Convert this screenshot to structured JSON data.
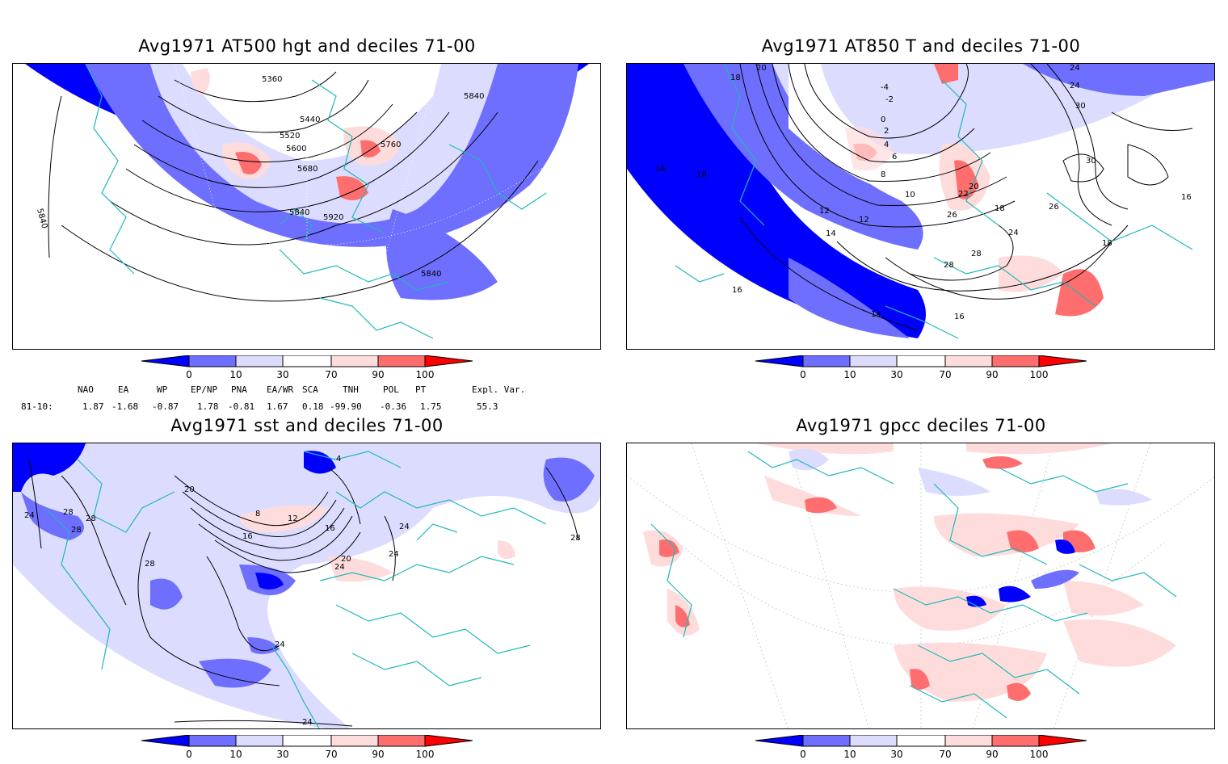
{
  "panels": [
    {
      "title": "Avg1971 AT500 hgt and deciles 71-00",
      "contour_labels": [
        "5360",
        "5440",
        "5520",
        "5600",
        "5680",
        "5760",
        "5840",
        "5840",
        "5840",
        "5840",
        "5920"
      ]
    },
    {
      "title": "Avg1971 AT850 T and deciles 71-00",
      "contour_labels": [
        "20",
        "18",
        "-4",
        "-2",
        "0",
        "2",
        "4",
        "6",
        "8",
        "10",
        "12",
        "12",
        "14",
        "14",
        "16",
        "16",
        "16",
        "16",
        "18",
        "18",
        "18",
        "20",
        "22",
        "24",
        "24",
        "24",
        "26",
        "26",
        "28",
        "28",
        "30",
        "30"
      ]
    },
    {
      "title": "Avg1971 sst and deciles 71-00",
      "contour_labels": [
        "24",
        "28",
        "28",
        "28",
        "28",
        "20",
        "16",
        "12",
        "8",
        "4",
        "16",
        "20",
        "24",
        "24",
        "24",
        "28",
        "24",
        "24"
      ]
    },
    {
      "title": "Avg1971 gpcc deciles 71-00",
      "contour_labels": []
    }
  ],
  "colorbar": {
    "labels": [
      "0",
      "10",
      "30",
      "70",
      "90",
      "100"
    ],
    "colors": {
      "c0": "#0000ff",
      "c1": "#6e6eff",
      "c2": "#dcdcff",
      "c3": "#ffffff",
      "c4": "#ffdcdc",
      "c5": "#ff6e6e",
      "c6": "#ff0000"
    }
  },
  "indices": {
    "header": [
      "NAO",
      "EA",
      "WP",
      "EP/NP",
      "PNA",
      "EA/WR",
      "SCA",
      "TNH",
      "POL",
      "PT",
      "Expl. Var."
    ],
    "row_label": "81-10:",
    "values": [
      "1.87",
      "-1.68",
      "-0.87",
      "1.78",
      "-0.81",
      "1.67",
      "0.18",
      "-99.90",
      "-0.36",
      "1.75",
      "55.3"
    ]
  },
  "map_colors": {
    "coast": "#20b8b8",
    "deep_blue": "#0000ff",
    "mid_blue": "#6e6eff",
    "light_blue": "#dcdcff",
    "light_red": "#ffdcdc",
    "mid_red": "#ff6e6e"
  }
}
